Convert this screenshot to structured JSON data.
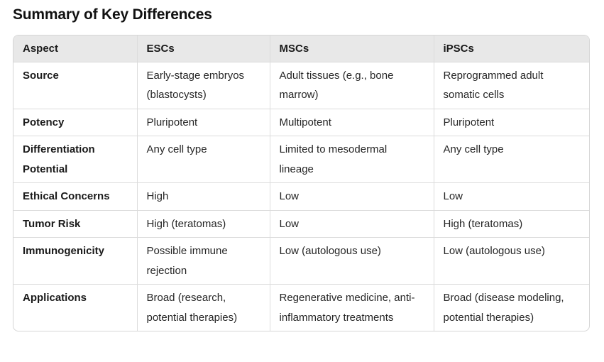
{
  "title": "Summary of Key Differences",
  "table": {
    "headers": [
      "Aspect",
      "ESCs",
      "MSCs",
      "iPSCs"
    ],
    "rows": [
      [
        "Source",
        "Early-stage embryos (blastocysts)",
        "Adult tissues (e.g., bone marrow)",
        "Reprogrammed adult somatic cells"
      ],
      [
        "Potency",
        "Pluripotent",
        "Multipotent",
        "Pluripotent"
      ],
      [
        "Differentiation Potential",
        "Any cell type",
        "Limited to mesodermal lineage",
        "Any cell type"
      ],
      [
        "Ethical Concerns",
        "High",
        "Low",
        "Low"
      ],
      [
        "Tumor Risk",
        "High (teratomas)",
        "Low",
        "High (teratomas)"
      ],
      [
        "Immunogenicity",
        "Possible immune rejection",
        "Low (autologous use)",
        "Low (autologous use)"
      ],
      [
        "Applications",
        "Broad (research, potential therapies)",
        "Regenerative medicine, anti-inflammatory treatments",
        "Broad (disease modeling, potential therapies)"
      ]
    ]
  }
}
